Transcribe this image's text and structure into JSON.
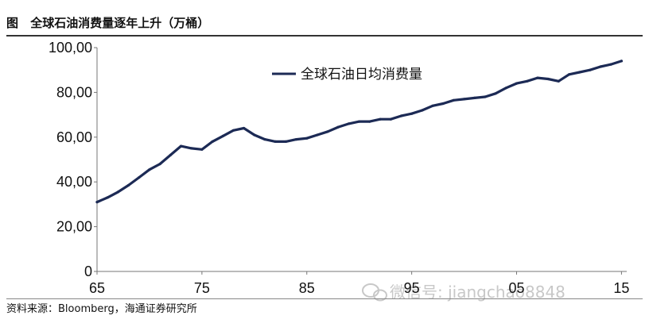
{
  "header": {
    "tag": "图",
    "title": "全球石油消费量逐年上升（万桶）"
  },
  "footer": {
    "source": "资料来源：Bloomberg，海通证券研究所"
  },
  "watermark": {
    "text": "微信号: jiangchao8848",
    "icon": "wechat-icon"
  },
  "chart_data": {
    "type": "line",
    "title": "全球石油消费量逐年上升（万桶）",
    "xlabel": "",
    "ylabel": "",
    "x_ticks": [
      "65",
      "75",
      "85",
      "95",
      "05",
      "15"
    ],
    "y_ticks": [
      "0",
      "20,00",
      "40,00",
      "60,00",
      "80,00",
      "100,00"
    ],
    "ylim": [
      0,
      100
    ],
    "xlim": [
      1965,
      2015.5
    ],
    "grid": false,
    "legend_position": "top-center",
    "series": [
      {
        "name": "全球石油日均消费量",
        "color": "#1c2a55",
        "x": [
          1965,
          1966,
          1967,
          1968,
          1969,
          1970,
          1971,
          1972,
          1973,
          1974,
          1975,
          1976,
          1977,
          1978,
          1979,
          1980,
          1981,
          1982,
          1983,
          1984,
          1985,
          1986,
          1987,
          1988,
          1989,
          1990,
          1991,
          1992,
          1993,
          1994,
          1995,
          1996,
          1997,
          1998,
          1999,
          2000,
          2001,
          2002,
          2003,
          2004,
          2005,
          2006,
          2007,
          2008,
          2009,
          2010,
          2011,
          2012,
          2013,
          2014,
          2015
        ],
        "values": [
          31,
          33,
          35.5,
          38.5,
          42,
          45.5,
          48,
          52,
          56,
          55,
          54.5,
          58,
          60.5,
          63,
          64,
          61,
          59,
          58,
          58,
          59,
          59.5,
          61,
          62.5,
          64.5,
          66,
          67,
          67,
          68,
          68,
          69.5,
          70.5,
          72,
          74,
          75,
          76.5,
          77,
          77.5,
          78,
          79.5,
          82,
          84,
          85,
          86.5,
          86,
          85,
          88,
          89,
          90,
          91.5,
          92.5,
          94
        ]
      }
    ]
  }
}
